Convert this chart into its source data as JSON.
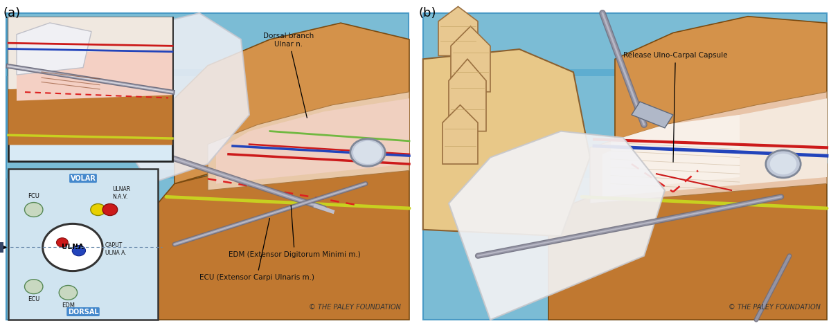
{
  "fig_width": 12.0,
  "fig_height": 4.74,
  "dpi": 100,
  "bg_color": "#ffffff",
  "panel_bg": "#7bbcd5",
  "stripe_color": "#5eadd0",
  "panel_a_label": "(a)",
  "panel_b_label": "(b)",
  "label_fontsize": 13,
  "copyright_text": "© THE PALEY FOUNDATION",
  "copyright_fontsize": 7.0,
  "annotation_a1_text": "Dorsal branch\nUlnar n.",
  "annotation_b1_text": "Release Ulno-Carpal Capsule",
  "annotation_edm": "EDM (Extensor Digitorum Minimi m.)",
  "annotation_ecu": "ECU (Extensor Carpi Ulnaris m.)",
  "inset_volar": "VOLAR",
  "inset_dorsal": "DORSAL",
  "inset_ulna": "ULNA",
  "inset_fcu": "FCU",
  "inset_ecu": "ECU",
  "inset_edm": "EDM",
  "inset_ulnar_nav": "ULNAR\nN.A.V.",
  "inset_caput": "CAPUT\nULNA A.",
  "annotation_color": "#111111",
  "annotation_fontsize": 7.5,
  "skin_dark": "#c07830",
  "skin_mid": "#d4924a",
  "skin_light": "#e8b870",
  "flesh_light": "#f0d4a0",
  "flesh_mid": "#e8c090",
  "red_vessel": "#cc1a1a",
  "blue_vessel": "#2244bb",
  "yellow_nerve": "#c8d020",
  "green_nerve": "#70b840",
  "gray_instrument": "#9898a8",
  "white_glove": "#f0f0f2",
  "inset_bg_upper": "#d8eaf5",
  "inset_bg_lower": "#d0e4f0"
}
